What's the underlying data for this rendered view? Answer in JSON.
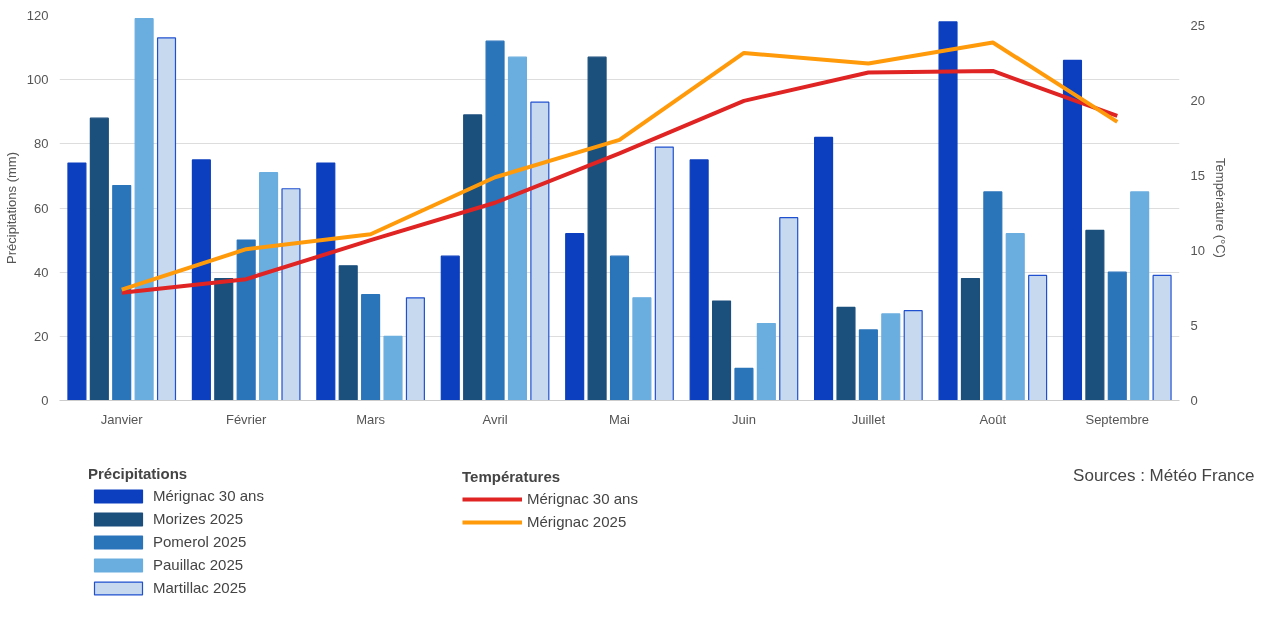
{
  "chart_data": {
    "type": "bar",
    "categories": [
      "Janvier",
      "Février",
      "Mars",
      "Avril",
      "Mai",
      "Juin",
      "Juillet",
      "Août",
      "Septembre"
    ],
    "ylabel": "Précipitations (mm)",
    "y2label": "Température (°C)",
    "legend_title": "Précipitations",
    "ylim": [
      0,
      120
    ],
    "yticks": [
      0,
      20,
      40,
      60,
      80,
      100,
      120
    ],
    "y2lim": [
      0,
      25.7
    ],
    "y2ticks": [
      0,
      5,
      10,
      15,
      20,
      25
    ],
    "grid": "y",
    "legend": "bottom",
    "annotations": [
      "Températures",
      "Sources : Météo France"
    ],
    "series": [
      {
        "name": "Mérignac 30 ans",
        "color": "#0b3fbf",
        "values": [
          74,
          75,
          74,
          45,
          52,
          75,
          82,
          118,
          106
        ]
      },
      {
        "name": "Morizes 2025",
        "color": "#1b4f7c",
        "values": [
          88,
          38,
          42,
          89,
          107,
          31,
          29,
          38,
          53
        ]
      },
      {
        "name": "Pomerol 2025",
        "color": "#2a74ba",
        "values": [
          67,
          50,
          33,
          112,
          45,
          10,
          22,
          65,
          40
        ]
      },
      {
        "name": "Pauillac 2025",
        "color": "#6aaddf",
        "values": [
          119,
          71,
          20,
          107,
          32,
          24,
          27,
          52,
          65
        ]
      },
      {
        "name": "Martillac 2025",
        "color": "#c6d9ee",
        "values": [
          113,
          66,
          32,
          93,
          79,
          57,
          28,
          39,
          39
        ]
      },
      {
        "name": "Mérignac 30 ans",
        "type": "line",
        "axis": "y2",
        "color": "#e02424",
        "values": [
          7.2,
          8.1,
          10.7,
          13.2,
          16.5,
          20.0,
          21.9,
          22.0,
          19.0
        ]
      },
      {
        "name": "Mérignac 2025",
        "type": "line",
        "axis": "y2",
        "color": "#ff9a0a",
        "values": [
          7.4,
          10.1,
          11.1,
          14.9,
          17.4,
          23.2,
          22.5,
          23.9,
          18.6
        ]
      }
    ]
  }
}
